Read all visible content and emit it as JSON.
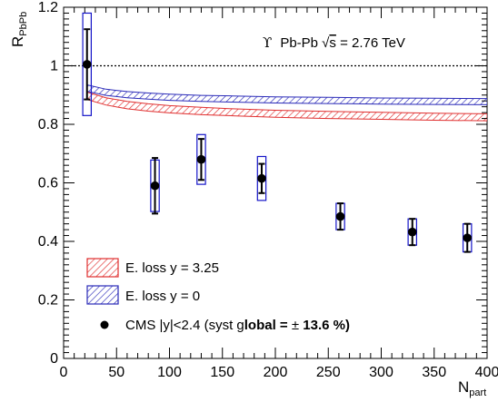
{
  "chart_data": {
    "type": "scatter",
    "xlabel": "N",
    "xlabel_sub": "part",
    "ylabel": "R",
    "ylabel_sub": "PbPb",
    "xlim": [
      0,
      400
    ],
    "ylim": [
      0,
      1.2
    ],
    "x_ticks": [
      0,
      50,
      100,
      150,
      200,
      250,
      300,
      350,
      400
    ],
    "y_ticks": [
      0,
      0.2,
      0.4,
      0.6,
      0.8,
      1,
      1.2
    ],
    "x_tick_labels": [
      "0",
      "50",
      "100",
      "150",
      "200",
      "250",
      "300",
      "350",
      "400"
    ],
    "y_tick_labels": [
      "0",
      "0.2",
      "0.4",
      "0.6",
      "0.8",
      "1",
      "1.2"
    ],
    "reference_line": 1.0,
    "annotation": {
      "symbol": "ϒ",
      "text_pre": "Pb-Pb ",
      "sqrt": "√",
      "s_var": "s",
      "text_post": " = 2.76 TeV"
    },
    "series": [
      {
        "name": "CMS |y|<2.4 (syst global = ± 13.6 %)",
        "legend_pre": "CMS |y|<2.4 (syst g",
        "legend_bold": "lobal = ",
        "legend_pm": "±",
        "legend_post": " 13.6 %)",
        "marker_color": "#000000",
        "sys_box_color": "#1414c8",
        "points": [
          {
            "x": 22.1,
            "y": 1.005,
            "stat_lo": 0.12,
            "stat_hi": 0.12,
            "sys": 0.175,
            "box_hw": 4
          },
          {
            "x": 86.3,
            "y": 0.59,
            "stat_lo": 0.095,
            "stat_hi": 0.095,
            "sys": 0.088,
            "box_hw": 4
          },
          {
            "x": 130.0,
            "y": 0.68,
            "stat_lo": 0.07,
            "stat_hi": 0.07,
            "sys": 0.085,
            "box_hw": 4
          },
          {
            "x": 187.1,
            "y": 0.615,
            "stat_lo": 0.05,
            "stat_hi": 0.05,
            "sys": 0.075,
            "box_hw": 4
          },
          {
            "x": 261.4,
            "y": 0.485,
            "stat_lo": 0.045,
            "stat_hi": 0.045,
            "sys": 0.045,
            "box_hw": 4
          },
          {
            "x": 329.4,
            "y": 0.432,
            "stat_lo": 0.045,
            "stat_hi": 0.045,
            "sys": 0.045,
            "box_hw": 4
          },
          {
            "x": 381.3,
            "y": 0.412,
            "stat_lo": 0.048,
            "stat_hi": 0.048,
            "sys": 0.048,
            "box_hw": 4
          }
        ]
      }
    ],
    "bands": [
      {
        "name": "E. loss y = 3.25",
        "color": "#e03030",
        "x": [
          22,
          40,
          60,
          80,
          100,
          130,
          160,
          200,
          250,
          300,
          350,
          400
        ],
        "lower": [
          0.885,
          0.866,
          0.853,
          0.845,
          0.839,
          0.833,
          0.829,
          0.824,
          0.82,
          0.817,
          0.814,
          0.812
        ],
        "upper": [
          0.91,
          0.891,
          0.878,
          0.87,
          0.864,
          0.858,
          0.853,
          0.848,
          0.844,
          0.841,
          0.838,
          0.836
        ]
      },
      {
        "name": "E. loss y = 0",
        "color": "#2a2ab8",
        "x": [
          22,
          40,
          60,
          80,
          100,
          130,
          160,
          200,
          250,
          300,
          350,
          400
        ],
        "lower": [
          0.913,
          0.899,
          0.891,
          0.886,
          0.882,
          0.878,
          0.876,
          0.873,
          0.871,
          0.869,
          0.868,
          0.867
        ],
        "upper": [
          0.935,
          0.92,
          0.912,
          0.907,
          0.903,
          0.899,
          0.897,
          0.894,
          0.892,
          0.89,
          0.889,
          0.888
        ]
      }
    ],
    "legend_position": "bottom-left"
  }
}
